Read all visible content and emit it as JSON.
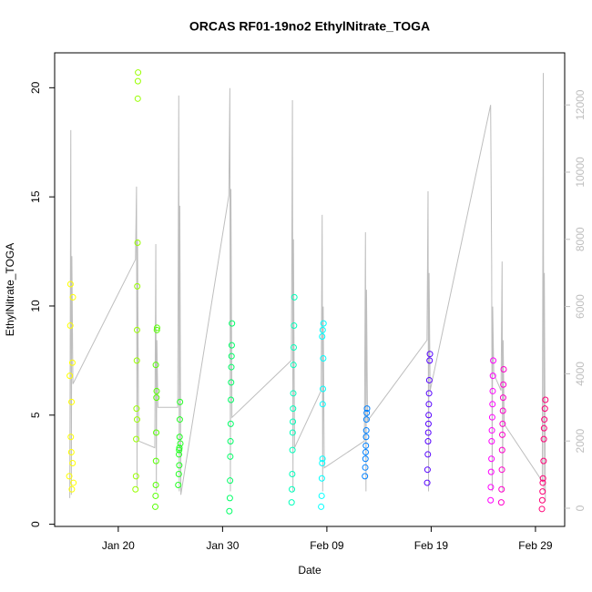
{
  "chart_data": {
    "type": "scatter",
    "title": "ORCAS RF01-19no2 EthylNitrate_TOGA",
    "x_label": "Date",
    "y_label": "EthylNitrate_TOGA",
    "xlim": [
      13.9,
      62.8
    ],
    "xticks": [
      {
        "value": 20,
        "label": "Jan 20"
      },
      {
        "value": 30,
        "label": "Jan 30"
      },
      {
        "value": 40,
        "label": "Feb 09"
      },
      {
        "value": 50,
        "label": "Feb 19"
      },
      {
        "value": 60,
        "label": "Feb 29"
      }
    ],
    "ylim": [
      -0.1,
      21.6
    ],
    "yticks": [
      0,
      5,
      10,
      15,
      20
    ],
    "y2lim": [
      -542,
      13550
    ],
    "y2ticks": [
      0,
      2000,
      4000,
      6000,
      8000,
      10000,
      12000
    ],
    "series": [
      {
        "axis": "y2",
        "color": "#bebebe",
        "x": [
          15.35,
          15.45,
          15.5,
          15.55,
          15.65,
          21.65,
          21.75,
          21.8,
          21.85,
          21.95,
          23.5,
          23.6,
          23.65,
          23.7,
          23.8,
          25.7,
          25.8,
          25.85,
          25.9,
          26.0,
          30.6,
          30.7,
          30.75,
          30.8,
          30.9,
          36.6,
          36.7,
          36.75,
          36.8,
          36.9,
          39.45,
          39.55,
          39.6,
          39.65,
          39.75,
          43.6,
          43.7,
          43.75,
          43.8,
          43.9,
          49.6,
          49.7,
          49.75,
          49.8,
          49.9,
          55.7,
          55.8,
          55.85,
          55.9,
          56.0,
          56.7,
          56.8,
          56.85,
          56.9,
          57.0,
          60.65,
          60.75,
          60.8,
          60.85,
          60.95
        ],
        "values": [
          300,
          11250,
          400,
          7500,
          3700,
          7400,
          9570,
          600,
          8000,
          2000,
          1800,
          7860,
          500,
          5000,
          3000,
          3000,
          12280,
          500,
          9000,
          400,
          9300,
          12500,
          500,
          9500,
          2700,
          4400,
          12140,
          500,
          8000,
          1800,
          3500,
          8730,
          500,
          6000,
          1200,
          2000,
          8210,
          500,
          6500,
          2600,
          5000,
          9430,
          500,
          7000,
          3500,
          12000,
          7260,
          500,
          6000,
          4000,
          3500,
          7340,
          500,
          5000,
          2500,
          800,
          12950,
          500,
          7000,
          200
        ]
      },
      {
        "color": "#ffff00",
        "x": [
          15.3,
          15.35,
          15.4,
          15.42,
          15.45,
          15.5,
          15.52,
          15.55,
          15.6,
          15.62,
          15.65,
          15.7
        ],
        "values": [
          2.2,
          6.8,
          9.1,
          11.0,
          4.0,
          3.3,
          5.6,
          1.6,
          7.4,
          2.8,
          10.4,
          1.9
        ]
      },
      {
        "color": "#99ff00",
        "x": [
          21.65,
          21.7,
          21.72,
          21.75,
          21.78,
          21.8,
          21.82,
          21.85,
          21.87,
          21.88,
          21.9,
          21.8
        ],
        "values": [
          1.6,
          2.2,
          3.9,
          5.3,
          7.5,
          8.9,
          10.9,
          12.9,
          19.5,
          20.3,
          20.7,
          4.8
        ]
      },
      {
        "color": "#55ff00",
        "x": [
          23.55,
          23.58,
          23.6,
          23.62,
          23.64,
          23.66,
          23.6,
          23.7,
          23.72,
          23.68
        ],
        "values": [
          0.8,
          1.3,
          1.8,
          2.9,
          4.2,
          5.8,
          7.3,
          8.9,
          9.0,
          6.1
        ]
      },
      {
        "color": "#22ff22",
        "x": [
          25.75,
          25.8,
          25.82,
          25.84,
          25.86,
          25.88,
          25.9,
          25.92,
          25.85,
          25.95
        ],
        "values": [
          1.8,
          2.3,
          3.2,
          3.4,
          3.5,
          4.0,
          4.8,
          5.6,
          2.7,
          3.7
        ]
      },
      {
        "color": "#00ff66",
        "x": [
          30.65,
          30.7,
          30.72,
          30.74,
          30.76,
          30.78,
          30.8,
          30.82,
          30.84,
          30.86,
          30.88,
          30.9
        ],
        "values": [
          0.6,
          1.2,
          2.0,
          3.1,
          3.8,
          4.6,
          5.7,
          6.5,
          7.2,
          7.7,
          8.2,
          9.2
        ]
      },
      {
        "color": "#00ffbb",
        "x": [
          36.62,
          36.65,
          36.68,
          36.7,
          36.72,
          36.74,
          36.76,
          36.78,
          36.8,
          36.82,
          36.85,
          36.88
        ],
        "values": [
          1.0,
          1.6,
          2.3,
          3.4,
          4.2,
          4.7,
          5.3,
          6.0,
          7.3,
          8.1,
          9.1,
          10.4
        ]
      },
      {
        "color": "#00ffff",
        "x": [
          39.45,
          39.5,
          39.52,
          39.55,
          39.58,
          39.6,
          39.62,
          39.65,
          39.55,
          39.6,
          39.68
        ],
        "values": [
          0.8,
          1.3,
          2.1,
          2.8,
          3.0,
          5.5,
          6.2,
          7.6,
          8.6,
          8.9,
          9.2
        ]
      },
      {
        "color": "#0080ff",
        "x": [
          43.65,
          43.68,
          43.7,
          43.72,
          43.74,
          43.76,
          43.78,
          43.8,
          43.82,
          43.85
        ],
        "values": [
          2.2,
          2.6,
          3.0,
          3.3,
          3.6,
          4.0,
          4.3,
          4.8,
          5.1,
          5.3
        ]
      },
      {
        "color": "#5500ff",
        "x": [
          49.62,
          49.65,
          49.68,
          49.7,
          49.72,
          49.74,
          49.76,
          49.78,
          49.8,
          49.82,
          49.85,
          49.88
        ],
        "values": [
          1.9,
          2.5,
          3.2,
          3.8,
          4.2,
          4.6,
          5.0,
          5.5,
          6.0,
          6.6,
          7.5,
          7.8
        ]
      },
      {
        "color": "#ff00ff",
        "x": [
          55.7,
          55.72,
          55.75,
          55.78,
          55.8,
          55.82,
          55.85,
          55.88,
          55.9,
          55.92,
          55.95
        ],
        "values": [
          1.1,
          1.7,
          2.4,
          3.0,
          3.8,
          4.3,
          4.9,
          5.5,
          6.1,
          6.8,
          7.5
        ]
      },
      {
        "color": "#ff00cc",
        "x": [
          56.72,
          56.75,
          56.78,
          56.8,
          56.82,
          56.85,
          56.88,
          56.9,
          56.92,
          56.95
        ],
        "values": [
          1.0,
          1.6,
          2.5,
          3.4,
          4.1,
          4.6,
          5.2,
          5.8,
          6.4,
          7.1
        ]
      },
      {
        "color": "#ff0077",
        "x": [
          60.62,
          60.65,
          60.68,
          60.7,
          60.72,
          60.78,
          60.8,
          60.82,
          60.85,
          60.9,
          60.95
        ],
        "values": [
          0.7,
          1.1,
          1.5,
          1.9,
          2.1,
          2.9,
          3.9,
          4.4,
          4.8,
          5.3,
          5.7
        ]
      }
    ]
  }
}
